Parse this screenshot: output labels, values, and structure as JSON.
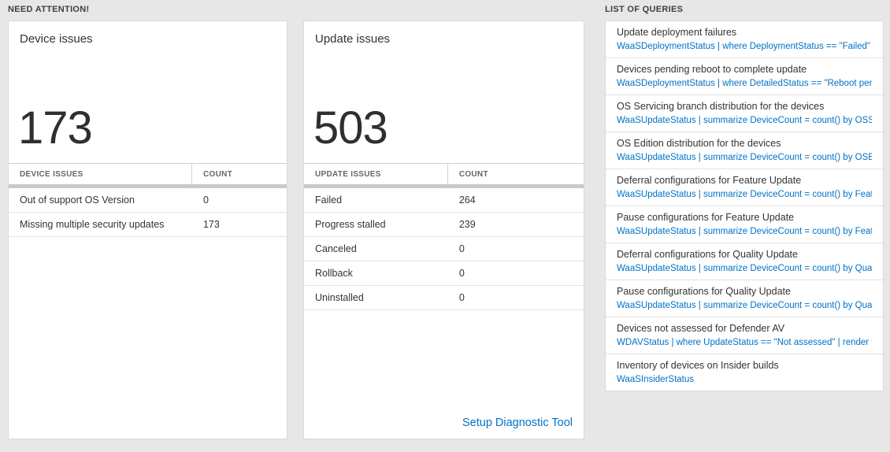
{
  "sections": {
    "need_attention": {
      "title": "NEED ATTENTION!"
    },
    "list_of_queries": {
      "title": "LIST OF QUERIES"
    }
  },
  "colors": {
    "link_blue": "#0072c6",
    "background": "#e7e7e7",
    "card_white": "#ffffff"
  },
  "device_card": {
    "title": "Device issues",
    "count": "173",
    "table": {
      "headers": [
        "DEVICE ISSUES",
        "COUNT"
      ],
      "rows": [
        {
          "name": "Out of support OS Version",
          "count": "0"
        },
        {
          "name": "Missing multiple security updates",
          "count": "173"
        }
      ]
    }
  },
  "update_card": {
    "title": "Update issues",
    "count": "503",
    "table": {
      "headers": [
        "UPDATE ISSUES",
        "COUNT"
      ],
      "rows": [
        {
          "name": "Failed",
          "count": "264"
        },
        {
          "name": "Progress stalled",
          "count": "239"
        },
        {
          "name": "Canceled",
          "count": "0"
        },
        {
          "name": "Rollback",
          "count": "0"
        },
        {
          "name": "Uninstalled",
          "count": "0"
        }
      ]
    },
    "footer_link": "Setup Diagnostic Tool"
  },
  "queries_card": {
    "items": [
      {
        "title": "Update deployment failures",
        "query": "WaaSDeploymentStatus | where DeploymentStatus == \"Failed\" |..."
      },
      {
        "title": "Devices pending reboot to complete update",
        "query": "WaaSDeploymentStatus | where DetailedStatus == \"Reboot pend..."
      },
      {
        "title": "OS Servicing branch distribution for the devices",
        "query": "WaaSUpdateStatus | summarize DeviceCount = count() by OSSer..."
      },
      {
        "title": "OS Edition distribution for the devices",
        "query": "WaaSUpdateStatus | summarize DeviceCount = count() by OSEdit..."
      },
      {
        "title": "Deferral configurations for Feature Update",
        "query": "WaaSUpdateStatus | summarize DeviceCount = count() by Featur..."
      },
      {
        "title": "Pause configurations for Feature Update",
        "query": "WaaSUpdateStatus | summarize DeviceCount = count() by Featur..."
      },
      {
        "title": "Deferral configurations for Quality Update",
        "query": "WaaSUpdateStatus | summarize DeviceCount = count() by Qualit..."
      },
      {
        "title": "Pause configurations for Quality Update",
        "query": "WaaSUpdateStatus | summarize DeviceCount = count() by Qualit..."
      },
      {
        "title": "Devices not assessed for Defender AV",
        "query": "WDAVStatus | where UpdateStatus == \"Not assessed\" | render ta..."
      },
      {
        "title": "Inventory of devices on Insider builds",
        "query": "WaaSInsiderStatus"
      }
    ]
  }
}
